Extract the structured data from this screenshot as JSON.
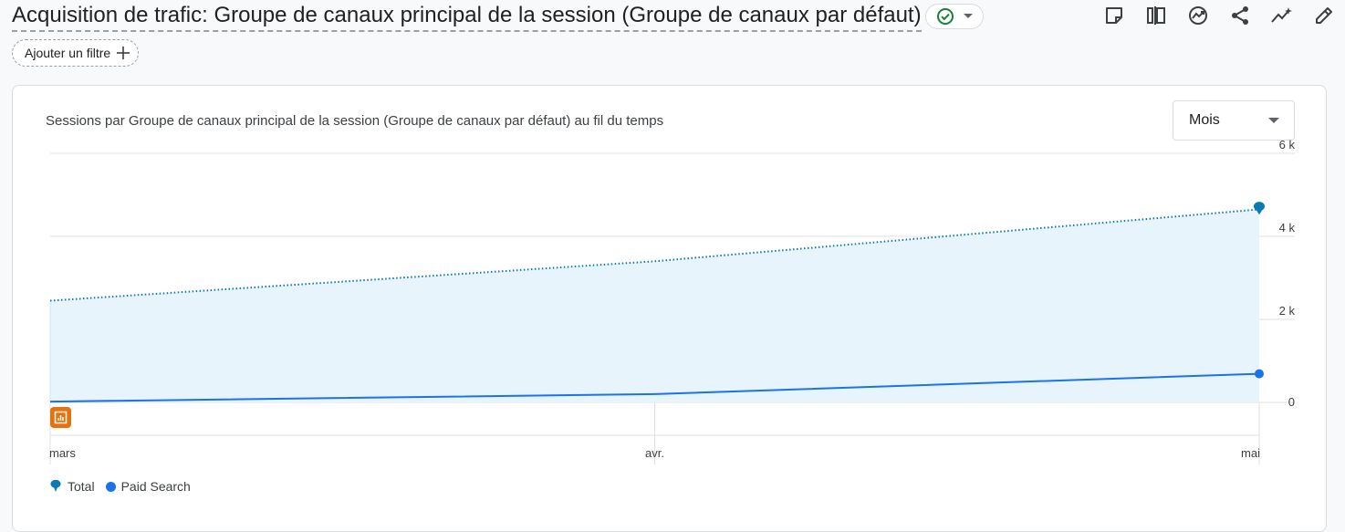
{
  "header": {
    "title": "Acquisition de trafic: Groupe de canaux principal de la session (Groupe de canaux par défaut)",
    "status_icon": "check-circle-icon",
    "toolbar_icons": [
      "note-icon",
      "compare-icon",
      "insights-icon",
      "share-icon",
      "trend-icon",
      "edit-icon"
    ]
  },
  "filter": {
    "label": "Ajouter un filtre"
  },
  "card": {
    "granularity": {
      "selected": "Mois"
    }
  },
  "colors": {
    "total": "#0b7ab3",
    "paid_search": "#1a73e8",
    "area": "#e8f4fc",
    "grid": "#e0e0e0",
    "annotation": "#e8710a"
  },
  "chart_data": {
    "type": "line",
    "title": "Sessions par Groupe de canaux principal de la session (Groupe de canaux par défaut) au fil du temps",
    "categories": [
      "mars",
      "avr.",
      "mai"
    ],
    "y_ticks": [
      "6 k",
      "4 k",
      "2 k",
      "0"
    ],
    "ylim": [
      0,
      6000
    ],
    "y_axis_position": "right",
    "grid": true,
    "legend_position": "bottom-left",
    "series": [
      {
        "name": "Total",
        "values": [
          2450,
          3400,
          4650
        ],
        "style": "dotted",
        "fill_area": true
      },
      {
        "name": "Paid Search",
        "values": [
          20,
          200,
          690
        ],
        "style": "solid"
      }
    ]
  }
}
